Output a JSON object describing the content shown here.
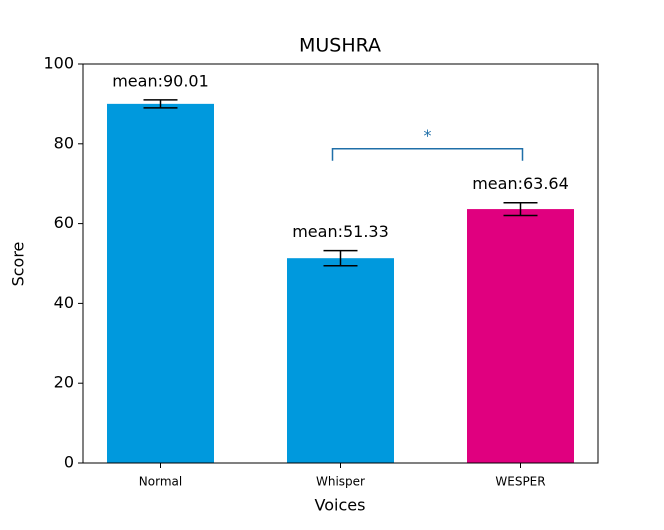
{
  "chart_data": {
    "type": "bar",
    "title": "MUSHRA",
    "xlabel": "Voices",
    "ylabel": "Score",
    "categories": [
      "Normal",
      "Whisper",
      "WESPER"
    ],
    "values": [
      90.01,
      51.33,
      63.64
    ],
    "value_labels": [
      "mean:90.01",
      "mean:51.33",
      "mean:63.64"
    ],
    "errors": [
      1.0,
      1.9,
      1.6
    ],
    "colors": [
      "#0099dd",
      "#0099dd",
      "#e0007f"
    ],
    "ylim": [
      0,
      100
    ],
    "yticks": [
      0,
      20,
      40,
      60,
      80,
      100
    ],
    "significance": {
      "from": "Whisper",
      "to": "WESPER",
      "label": "*",
      "color": "#1f6fa8"
    }
  }
}
